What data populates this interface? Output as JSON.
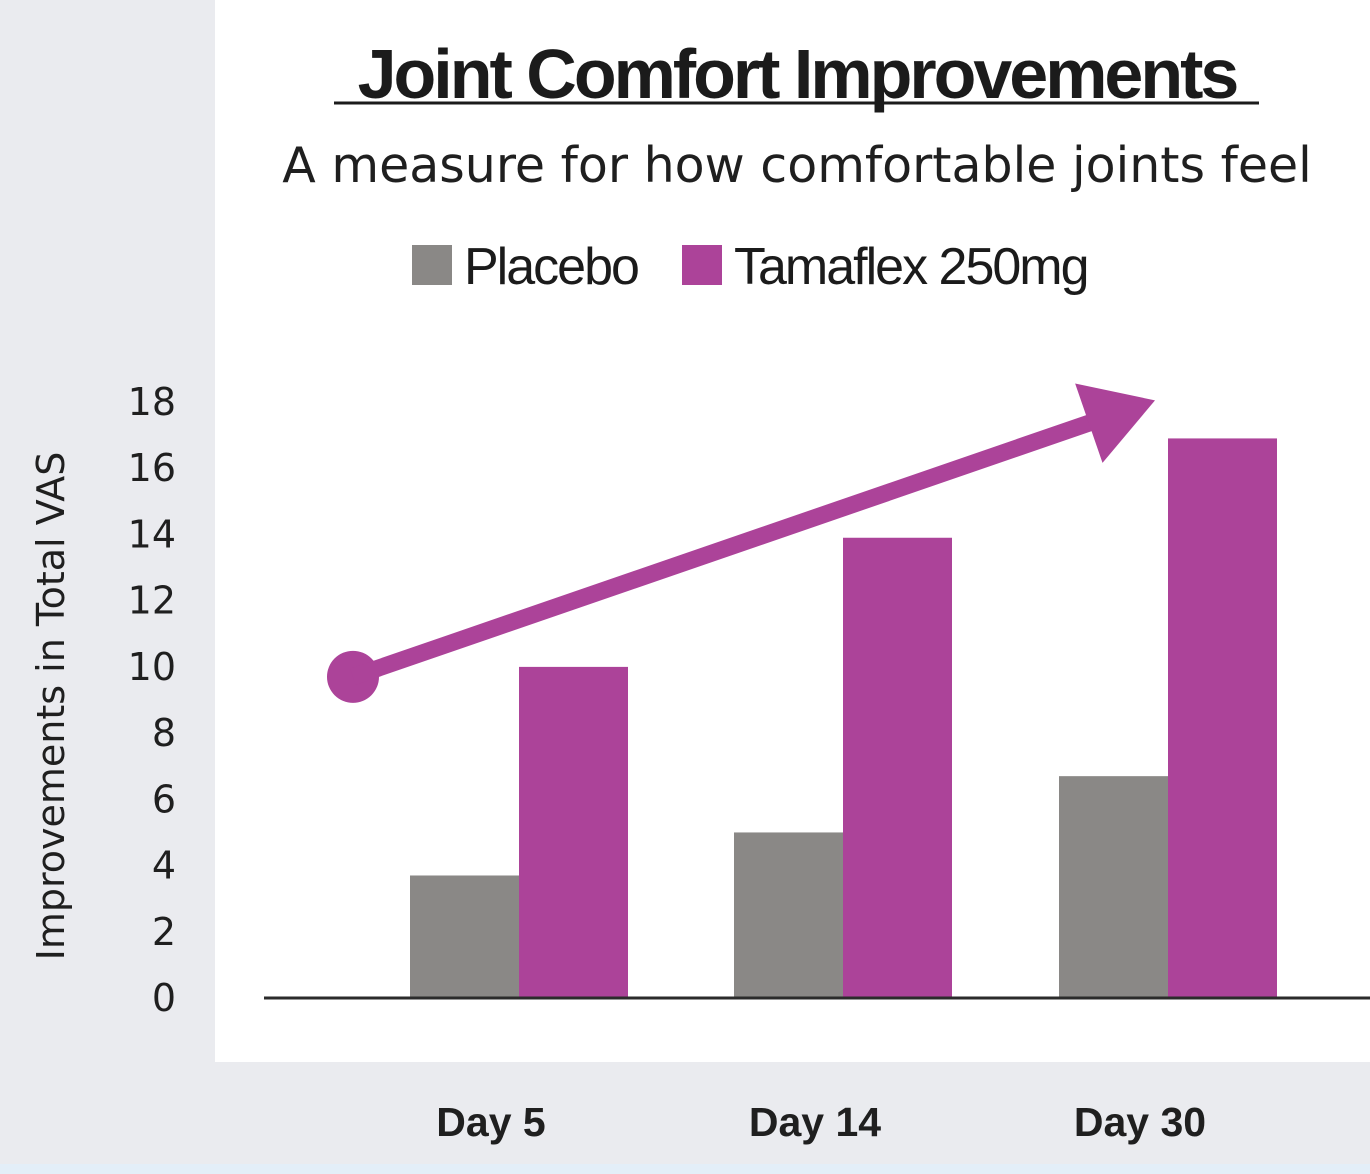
{
  "chart_data": {
    "type": "bar",
    "title": "Joint Comfort Improvements",
    "subtitle": "A measure for how comfortable joints feel",
    "ylabel": "Improvements in Total VAS",
    "xlabel": "",
    "ylim": [
      0,
      18
    ],
    "yticks": [
      "0",
      "2",
      "4",
      "6",
      "8",
      "10",
      "12",
      "14",
      "16",
      "18"
    ],
    "categories": [
      "Day 5",
      "Day 14",
      "Day 30"
    ],
    "series": [
      {
        "name": "Placebo",
        "color": "#8a8886",
        "values": [
          3.7,
          5.0,
          6.7
        ]
      },
      {
        "name": "Tamaflex 250mg",
        "color": "#ac4399",
        "values": [
          10.0,
          13.9,
          16.9
        ]
      }
    ],
    "legend_position": "top-center",
    "grid": false,
    "annotations": [
      {
        "type": "trend-arrow",
        "color": "#ac4399",
        "from": {
          "x": "start",
          "y": 9.7
        },
        "to": {
          "x": "Day 30",
          "y": 18.2
        }
      }
    ]
  }
}
